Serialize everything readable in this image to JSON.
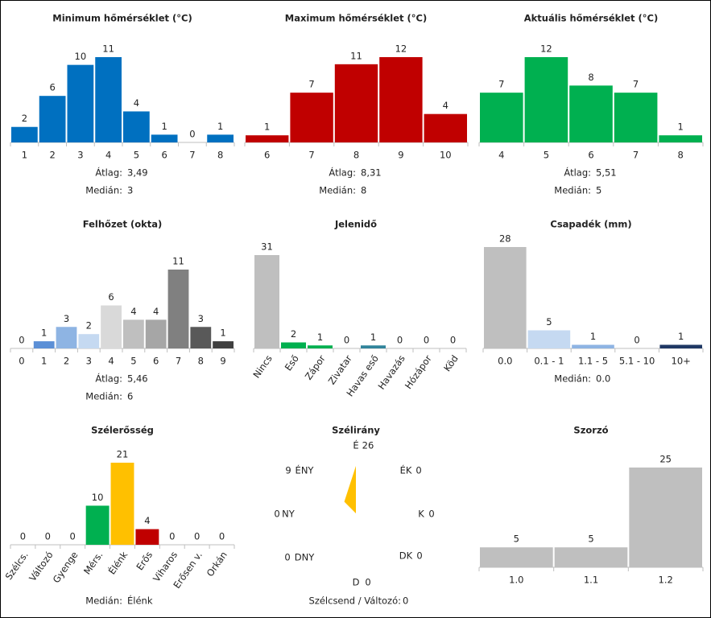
{
  "chart_data": [
    {
      "type": "bar",
      "title": "Minimum hőmérséklet (°C)",
      "categories": [
        "1",
        "2",
        "3",
        "4",
        "5",
        "6",
        "7",
        "8"
      ],
      "values": [
        2,
        6,
        10,
        11,
        4,
        1,
        0,
        1
      ],
      "color": "#0070c0",
      "stats": [
        {
          "label": "Átlag:",
          "value": "3,49"
        },
        {
          "label": "Medián:",
          "value": "3"
        }
      ]
    },
    {
      "type": "bar",
      "title": "Maximum hőmérséklet (°C)",
      "categories": [
        "6",
        "7",
        "8",
        "9",
        "10"
      ],
      "values": [
        1,
        7,
        11,
        12,
        4
      ],
      "color": "#c00000",
      "stats": [
        {
          "label": "Átlag:",
          "value": "8,31"
        },
        {
          "label": "Medián:",
          "value": "8"
        }
      ]
    },
    {
      "type": "bar",
      "title": "Aktuális hőmérséklet (°C)",
      "categories": [
        "4",
        "5",
        "6",
        "7",
        "8"
      ],
      "values": [
        7,
        12,
        8,
        7,
        1
      ],
      "color": "#00b050",
      "stats": [
        {
          "label": "Átlag:",
          "value": "5,51"
        },
        {
          "label": "Medián:",
          "value": "5"
        }
      ]
    },
    {
      "type": "bar",
      "title": "Felhőzet (okta)",
      "categories": [
        "0",
        "1",
        "2",
        "3",
        "4",
        "5",
        "6",
        "7",
        "8",
        "9"
      ],
      "values": [
        0,
        1,
        3,
        2,
        6,
        4,
        4,
        11,
        3,
        1
      ],
      "colors": [
        "#ffffff",
        "#5b8fd6",
        "#8eb4e3",
        "#c5d9f1",
        "#d9d9d9",
        "#bfbfbf",
        "#a6a6a6",
        "#808080",
        "#595959",
        "#404040"
      ],
      "stats": [
        {
          "label": "Átlag:",
          "value": "5,46"
        },
        {
          "label": "Medián:",
          "value": "6"
        }
      ]
    },
    {
      "type": "bar",
      "title": "Jelenidő",
      "categories": [
        "Nincs",
        "Eső",
        "Zápor",
        "Zivatar",
        "Havas eső",
        "Havazás",
        "Hózápor",
        "Köd"
      ],
      "values": [
        31,
        2,
        1,
        0,
        1,
        0,
        0,
        0
      ],
      "colors": [
        "#bfbfbf",
        "#00b050",
        "#00b050",
        "#c00000",
        "#31849b",
        "#bfbfbf",
        "#bfbfbf",
        "#bfbfbf"
      ]
    },
    {
      "type": "bar",
      "title": "Csapadék (mm)",
      "categories": [
        "0.0",
        "0.1 - 1",
        "1.1 - 5",
        "5.1 - 10",
        "10+"
      ],
      "values": [
        28,
        5,
        1,
        0,
        1
      ],
      "colors": [
        "#bfbfbf",
        "#c5d9f1",
        "#8eb4e3",
        "#5b8fd6",
        "#1f3864"
      ],
      "stats": [
        {
          "label": "Medián:",
          "value": "0.0"
        }
      ]
    },
    {
      "type": "bar",
      "title": "Szélerősség",
      "categories": [
        "Szélcs.",
        "Változó",
        "Gyenge",
        "Mérs.",
        "Élénk",
        "Erős",
        "Viharos",
        "Erősen v.",
        "Orkán"
      ],
      "values": [
        0,
        0,
        0,
        10,
        21,
        4,
        0,
        0,
        0
      ],
      "colors": [
        "#bfbfbf",
        "#bfbfbf",
        "#bfbfbf",
        "#00b050",
        "#ffc000",
        "#c00000",
        "#bfbfbf",
        "#bfbfbf",
        "#bfbfbf"
      ],
      "stats": [
        {
          "label": "Medián:",
          "value": "Élénk"
        }
      ]
    },
    {
      "type": "radar",
      "title": "Szélirány",
      "categories": [
        "É",
        "ÉK",
        "K",
        "DK",
        "D",
        "DNY",
        "NY",
        "ÉNY"
      ],
      "values": [
        26,
        0,
        0,
        0,
        0,
        0,
        0,
        9
      ],
      "color": "#ffc000",
      "calm_label": "Szélcsend / Változó:",
      "calm_value": 0
    },
    {
      "type": "bar",
      "title": "Szorzó",
      "categories": [
        "1.0",
        "1.1",
        "1.2"
      ],
      "values": [
        5,
        5,
        25
      ],
      "color": "#bfbfbf"
    }
  ]
}
